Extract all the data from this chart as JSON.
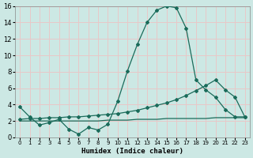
{
  "xlabel": "Humidex (Indice chaleur)",
  "xlim": [
    -0.5,
    23.5
  ],
  "ylim": [
    0,
    16
  ],
  "xticks": [
    0,
    1,
    2,
    3,
    4,
    5,
    6,
    7,
    8,
    9,
    10,
    11,
    12,
    13,
    14,
    15,
    16,
    17,
    18,
    19,
    20,
    21,
    22,
    23
  ],
  "yticks": [
    0,
    2,
    4,
    6,
    8,
    10,
    12,
    14,
    16
  ],
  "bg_color": "#cce8e4",
  "grid_color": "#e8c8c8",
  "line_color": "#1a6b5a",
  "line1_x": [
    0,
    1,
    2,
    3,
    4,
    5,
    6,
    7,
    8,
    9,
    10,
    11,
    12,
    13,
    14,
    15,
    16,
    17,
    18,
    19,
    20,
    21,
    22,
    23
  ],
  "line1_y": [
    3.7,
    2.5,
    1.5,
    1.8,
    2.2,
    1.0,
    0.4,
    1.2,
    0.9,
    1.6,
    4.4,
    8.1,
    11.3,
    14.0,
    15.5,
    16.0,
    15.8,
    13.3,
    7.0,
    5.8,
    4.9,
    3.4,
    2.5,
    2.5
  ],
  "line2_x": [
    0,
    1,
    2,
    3,
    4,
    5,
    6,
    7,
    8,
    9,
    10,
    11,
    12,
    13,
    14,
    15,
    16,
    17,
    18,
    19,
    20,
    21,
    22,
    23
  ],
  "line2_y": [
    2.2,
    2.3,
    2.3,
    2.4,
    2.4,
    2.5,
    2.5,
    2.6,
    2.7,
    2.8,
    2.9,
    3.1,
    3.3,
    3.6,
    3.9,
    4.2,
    4.6,
    5.1,
    5.7,
    6.3,
    7.0,
    5.8,
    4.9,
    2.5
  ],
  "line3_x": [
    0,
    1,
    2,
    3,
    4,
    5,
    6,
    7,
    8,
    9,
    10,
    11,
    12,
    13,
    14,
    15,
    16,
    17,
    18,
    19,
    20,
    21,
    22,
    23
  ],
  "line3_y": [
    2.0,
    2.0,
    2.0,
    2.0,
    2.0,
    2.0,
    2.0,
    2.0,
    2.0,
    2.1,
    2.1,
    2.1,
    2.2,
    2.2,
    2.2,
    2.3,
    2.3,
    2.3,
    2.3,
    2.3,
    2.4,
    2.4,
    2.4,
    2.4
  ]
}
